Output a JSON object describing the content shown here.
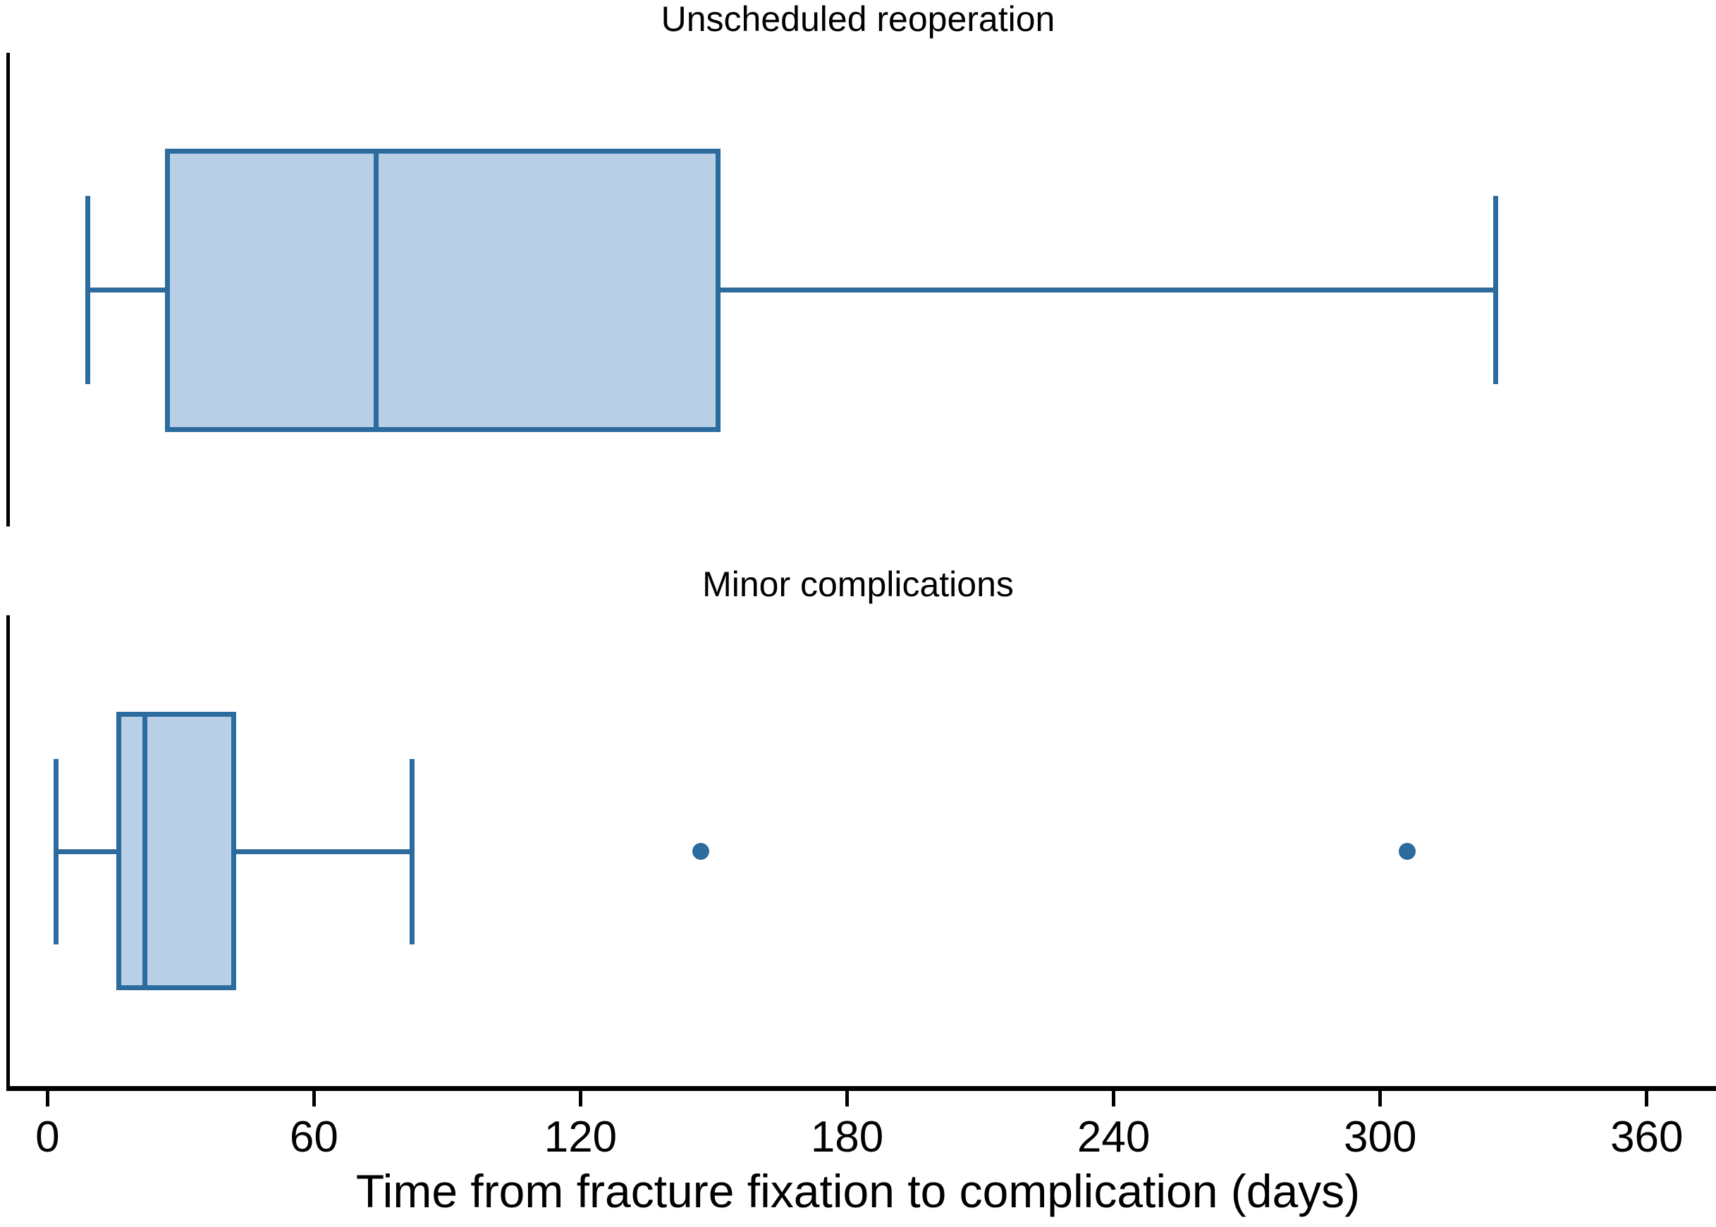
{
  "chart_data": {
    "type": "boxplot",
    "orientation": "horizontal",
    "xlabel": "Time from fracture fixation to complication (days)",
    "xticks": [
      0,
      60,
      120,
      180,
      240,
      300,
      360
    ],
    "xlim": [
      0,
      376
    ],
    "grid": false,
    "groups": [
      {
        "label": "Unscheduled reoperation",
        "min": 9,
        "q1": 27,
        "median": 74,
        "q3": 151,
        "max": 326,
        "outliers": []
      },
      {
        "label": "Minor complications",
        "min": 2,
        "q1": 16,
        "median": 22,
        "q3": 42,
        "max": 82,
        "outliers": [
          147,
          306
        ]
      }
    ],
    "colors": {
      "box_fill": "#b9cfe6",
      "box_stroke": "#2b6b9e",
      "axis": "#000000",
      "text": "#000000"
    }
  }
}
